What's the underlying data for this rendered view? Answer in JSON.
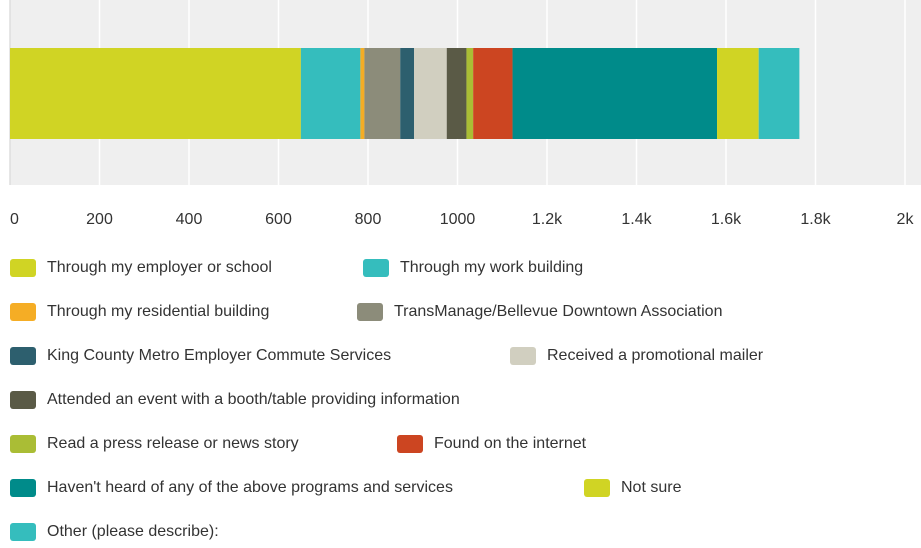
{
  "chart_data": {
    "type": "stacked-bar-horizontal",
    "series": [
      {
        "name": "Through my employer or school",
        "color": "#d0d424",
        "values": [
          650
        ]
      },
      {
        "name": "Through my work building",
        "color": "#35bdbd",
        "values": [
          133
        ]
      },
      {
        "name": "Through my residential building",
        "color": "#f5ad25",
        "values": [
          9
        ]
      },
      {
        "name": "TransManage/Bellevue Downtown Association",
        "color": "#8c8c7a",
        "values": [
          80
        ]
      },
      {
        "name": "King County Metro Employer Commute Services",
        "color": "#2d5f6e",
        "values": [
          31
        ]
      },
      {
        "name": "Received a promotional mailer",
        "color": "#d1cfc0",
        "values": [
          73
        ]
      },
      {
        "name": "Attended an event with a booth/table providing information",
        "color": "#5a5a46",
        "values": [
          44
        ]
      },
      {
        "name": "Read a press release or news story",
        "color": "#aabd35",
        "values": [
          15
        ]
      },
      {
        "name": "Found on the internet",
        "color": "#cc4521",
        "values": [
          88
        ]
      },
      {
        "name": "Haven't heard of any of the above programs and services",
        "color": "#008b8a",
        "values": [
          457
        ]
      },
      {
        "name": "Not sure",
        "color": "#d0d424",
        "values": [
          93
        ]
      },
      {
        "name": "Other (please describe):",
        "color": "#35bdbd",
        "values": [
          91
        ]
      }
    ],
    "xlim": [
      0,
      2000
    ],
    "xticks": [
      0,
      200,
      400,
      600,
      800,
      1000,
      {
        "value": 1200,
        "label": "1.2k"
      },
      {
        "value": 1400,
        "label": "1.4k"
      },
      {
        "value": 1600,
        "label": "1.6k"
      },
      {
        "value": 1800,
        "label": "1.8k"
      },
      {
        "value": 2000,
        "label": "2k"
      }
    ],
    "grid": true
  }
}
